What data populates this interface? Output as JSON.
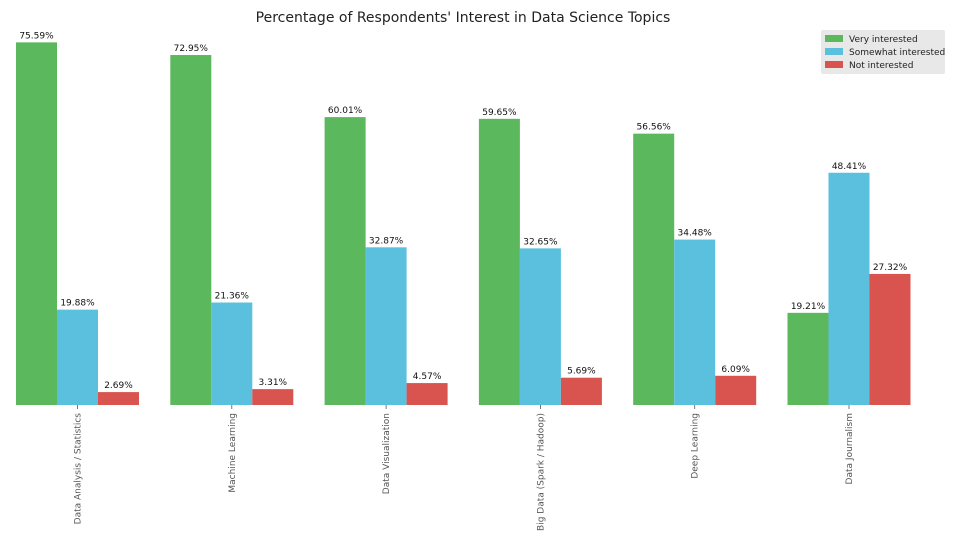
{
  "chart_data": {
    "type": "bar",
    "title": "Percentage of Respondents' Interest in Data Science Topics",
    "xlabel": "",
    "ylabel": "",
    "ylim": [
      0,
      79
    ],
    "grid": false,
    "legend_position": "top-right",
    "categories": [
      "Data Analysis / Statistics",
      "Machine Learning",
      "Data Visualization",
      "Big Data (Spark / Hadoop)",
      "Deep Learning",
      "Data Journalism"
    ],
    "series": [
      {
        "name": "Very interested",
        "color": "#5cb85c",
        "values": [
          75.59,
          72.95,
          60.01,
          59.65,
          56.56,
          19.21
        ],
        "labels": [
          "75.59%",
          "72.95%",
          "60.01%",
          "59.65%",
          "56.56%",
          "19.21%"
        ]
      },
      {
        "name": "Somewhat interested",
        "color": "#5bc0de",
        "values": [
          19.88,
          21.36,
          32.87,
          32.65,
          34.48,
          48.41
        ],
        "labels": [
          "19.88%",
          "21.36%",
          "32.87%",
          "32.65%",
          "34.48%",
          "48.41%"
        ]
      },
      {
        "name": "Not interested",
        "color": "#d9534f",
        "values": [
          2.69,
          3.31,
          4.57,
          5.69,
          6.09,
          27.32
        ],
        "labels": [
          "2.69%",
          "3.31%",
          "4.57%",
          "5.69%",
          "6.09%",
          "27.32%"
        ]
      }
    ]
  }
}
